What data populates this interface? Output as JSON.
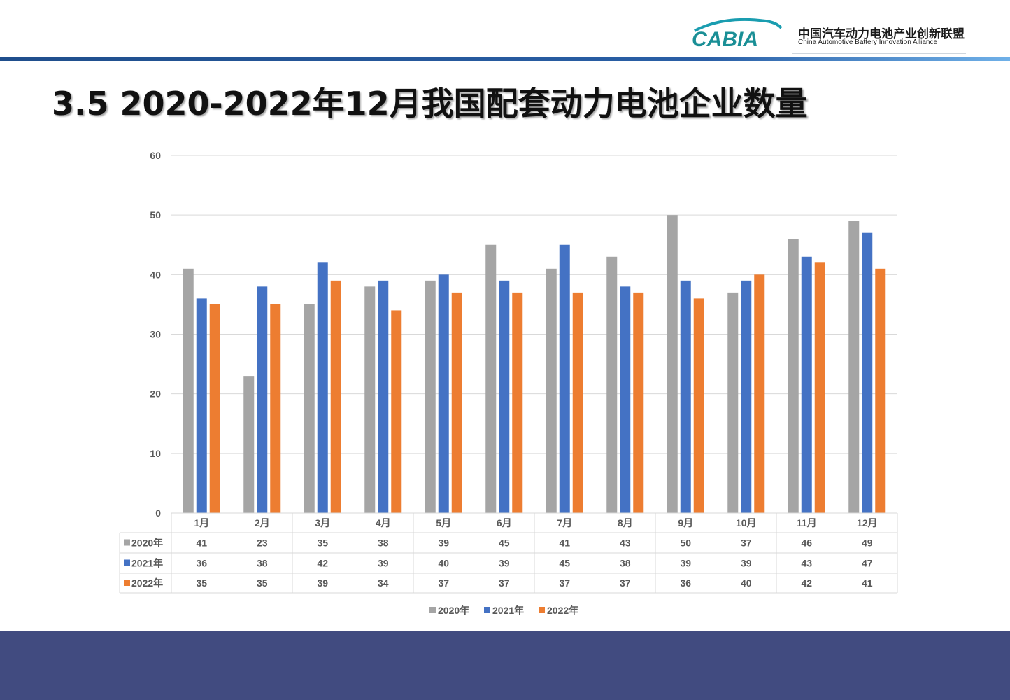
{
  "header": {
    "logo_text": "CABIA",
    "org_name_cn": "中国汽车动力电池产业创新联盟",
    "org_name_en": "China Automotive Battery Innovation Alliance"
  },
  "page_title": "3.5 2020-2022年12月我国配套动力电池企业数量",
  "chart_data": {
    "type": "bar",
    "categories": [
      "1月",
      "2月",
      "3月",
      "4月",
      "5月",
      "6月",
      "7月",
      "8月",
      "9月",
      "10月",
      "11月",
      "12月"
    ],
    "series": [
      {
        "name": "2020年",
        "color": "#a5a5a5",
        "values": [
          41,
          23,
          35,
          38,
          39,
          45,
          41,
          43,
          50,
          37,
          46,
          49
        ]
      },
      {
        "name": "2021年",
        "color": "#4472c4",
        "values": [
          36,
          38,
          42,
          39,
          40,
          39,
          45,
          38,
          39,
          39,
          43,
          47
        ]
      },
      {
        "name": "2022年",
        "color": "#ed7d31",
        "values": [
          35,
          35,
          39,
          34,
          37,
          37,
          37,
          37,
          36,
          40,
          42,
          41
        ]
      }
    ],
    "ylim": [
      0,
      60
    ],
    "yticks": [
      0,
      10,
      20,
      30,
      40,
      50,
      60
    ],
    "grid": true,
    "data_table": true,
    "legend_position": "bottom"
  }
}
